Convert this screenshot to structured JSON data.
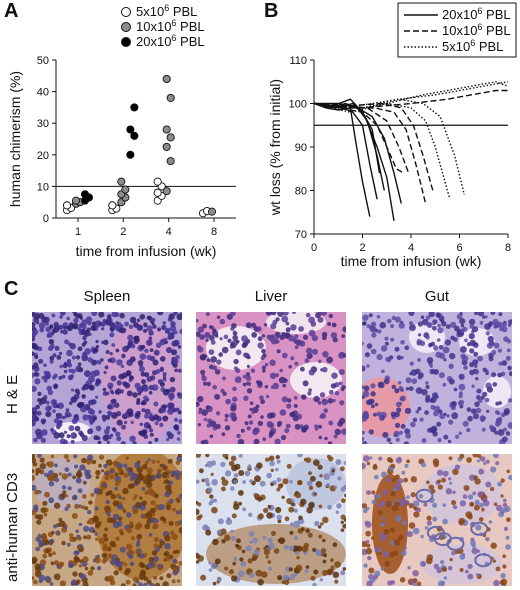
{
  "panelA": {
    "letter": "A",
    "chart_data": {
      "type": "scatter",
      "xlabel": "time from infusion (wk)",
      "ylabel": "human chimerism (%)",
      "categories": [
        "1",
        "2",
        "4",
        "8"
      ],
      "yticks": [
        "0",
        "10",
        "20",
        "30",
        "40",
        "50"
      ],
      "ylim": [
        0,
        50
      ],
      "reference_line": 10,
      "legend_position": "top-right",
      "series": [
        {
          "name": "5x10<sup>6</sup> PBL",
          "label_base": "5x10",
          "label_sup": "6",
          "label_tail": " PBL",
          "color": "#ffffff",
          "values": {
            "1": [
              2.5,
              3.2,
              4.0
            ],
            "2": [
              2.5,
              3.0,
              4.0
            ],
            "4": [
              5.5,
              7.0,
              8.0,
              10.0,
              11.5
            ],
            "8": [
              1.5,
              2.2
            ]
          }
        },
        {
          "name": "10x10<sup>6</sup> PBL",
          "label_base": "10x10",
          "label_sup": "6",
          "label_tail": " PBL",
          "color": "#8c8c8c",
          "values": {
            "1": [
              4.5,
              5.0,
              5.5
            ],
            "2": [
              5.0,
              6.5,
              7.5,
              9.0,
              11.5
            ],
            "4": [
              8.5,
              18.0,
              22.5,
              25.5,
              28.0,
              38.0,
              44.0
            ],
            "8": [
              2.0
            ]
          }
        },
        {
          "name": "20x10<sup>6</sup> PBL",
          "label_base": "20x10",
          "label_sup": "6",
          "label_tail": " PBL",
          "color": "#000000",
          "values": {
            "1": [
              5.5,
              6.5,
              7.5
            ],
            "2": [
              20.0,
              26.0,
              28.0,
              35.0
            ],
            "4": [],
            "8": []
          }
        }
      ]
    }
  },
  "panelB": {
    "letter": "B",
    "chart_data": {
      "type": "line",
      "xlabel": "time from infusion (wk)",
      "ylabel": "wt loss (% from initial)",
      "xticks": [
        "0",
        "2",
        "4",
        "6",
        "8"
      ],
      "yticks": [
        "70",
        "80",
        "90",
        "100",
        "110"
      ],
      "xlim": [
        0,
        8
      ],
      "ylim": [
        70,
        110
      ],
      "reference_line": 95,
      "legend_position": "top-right",
      "series": [
        {
          "name": "20x10<sup>6</sup> PBL",
          "label_base": "20x10",
          "label_sup": "6",
          "label_tail": " PBL",
          "dash": "solid",
          "lines": [
            [
              [
                0,
                100
              ],
              [
                0.5,
                99
              ],
              [
                1,
                98.5
              ],
              [
                1.5,
                99
              ],
              [
                1.7,
                92
              ],
              [
                2.0,
                82
              ],
              [
                2.3,
                74
              ]
            ],
            [
              [
                0,
                100
              ],
              [
                0.6,
                99.5
              ],
              [
                1.2,
                99
              ],
              [
                1.6,
                98
              ],
              [
                2.0,
                95
              ],
              [
                2.3,
                86
              ],
              [
                2.6,
                78
              ]
            ],
            [
              [
                0,
                100
              ],
              [
                0.7,
                99
              ],
              [
                1.3,
                100
              ],
              [
                1.8,
                99
              ],
              [
                2.2,
                96
              ],
              [
                2.6,
                88
              ],
              [
                2.9,
                80
              ]
            ],
            [
              [
                0,
                100
              ],
              [
                0.8,
                99.5
              ],
              [
                1.5,
                101
              ],
              [
                2.0,
                98
              ],
              [
                2.4,
                94
              ],
              [
                2.7,
                84
              ]
            ],
            [
              [
                0,
                100
              ],
              [
                0.9,
                99
              ],
              [
                1.6,
                100
              ],
              [
                2.1,
                97
              ],
              [
                2.6,
                90
              ],
              [
                3.0,
                83
              ],
              [
                3.3,
                73
              ]
            ],
            [
              [
                0,
                100
              ],
              [
                1.0,
                100
              ],
              [
                1.8,
                99
              ],
              [
                2.4,
                97
              ],
              [
                2.9,
                92
              ],
              [
                3.3,
                84
              ],
              [
                3.6,
                77
              ]
            ]
          ]
        },
        {
          "name": "10x10<sup>6</sup> PBL",
          "label_base": "10x10",
          "label_sup": "6",
          "label_tail": " PBL",
          "dash": "dashed",
          "lines": [
            [
              [
                0,
                100
              ],
              [
                1.0,
                99
              ],
              [
                2.0,
                98
              ],
              [
                2.6,
                95
              ],
              [
                3.0,
                90
              ],
              [
                3.4,
                85
              ],
              [
                3.7,
                84
              ]
            ],
            [
              [
                0,
                100
              ],
              [
                1.2,
                99.5
              ],
              [
                2.2,
                99
              ],
              [
                3.0,
                96
              ],
              [
                3.5,
                90
              ],
              [
                3.9,
                84
              ]
            ],
            [
              [
                0,
                100
              ],
              [
                1.4,
                99
              ],
              [
                2.5,
                99
              ],
              [
                3.3,
                98
              ],
              [
                3.8,
                94
              ],
              [
                4.2,
                86
              ],
              [
                4.6,
                77
              ]
            ],
            [
              [
                0,
                100
              ],
              [
                1.5,
                99.5
              ],
              [
                2.8,
                100
              ],
              [
                3.6,
                99
              ],
              [
                4.1,
                95
              ],
              [
                4.5,
                88
              ],
              [
                4.9,
                80
              ]
            ],
            [
              [
                0,
                100
              ],
              [
                2,
                99
              ],
              [
                4,
                100
              ],
              [
                5.5,
                101
              ],
              [
                6.5,
                102
              ],
              [
                7.5,
                103
              ],
              [
                8,
                103
              ]
            ]
          ]
        },
        {
          "name": "5x10<sup>6</sup> PBL",
          "label_base": "5x10",
          "label_sup": "6",
          "label_tail": " PBL",
          "dash": "dotted",
          "lines": [
            [
              [
                0,
                100
              ],
              [
                1,
                99
              ],
              [
                2,
                99
              ],
              [
                3,
                100
              ],
              [
                4,
                99
              ],
              [
                4.6,
                96
              ],
              [
                5.0,
                90
              ],
              [
                5.4,
                82
              ],
              [
                5.6,
                78
              ]
            ],
            [
              [
                0,
                100
              ],
              [
                1.2,
                99
              ],
              [
                2.4,
                100
              ],
              [
                3.5,
                101
              ],
              [
                4.5,
                100
              ],
              [
                5.2,
                97
              ],
              [
                5.8,
                88
              ],
              [
                6.2,
                79
              ]
            ],
            [
              [
                0,
                100
              ],
              [
                1.5,
                98
              ],
              [
                3,
                100
              ],
              [
                4.5,
                102
              ],
              [
                5.5,
                103
              ],
              [
                6.5,
                104
              ],
              [
                7.5,
                105
              ],
              [
                8,
                104
              ]
            ],
            [
              [
                0,
                100
              ],
              [
                2,
                99
              ],
              [
                3.5,
                101
              ],
              [
                5,
                102
              ],
              [
                6,
                103
              ],
              [
                7,
                104
              ],
              [
                8,
                105
              ]
            ]
          ]
        }
      ]
    }
  },
  "panelC": {
    "letter": "C",
    "columns": [
      "Spleen",
      "Liver",
      "Gut"
    ],
    "rows": [
      "H & E",
      "anti-human CD3"
    ]
  }
}
